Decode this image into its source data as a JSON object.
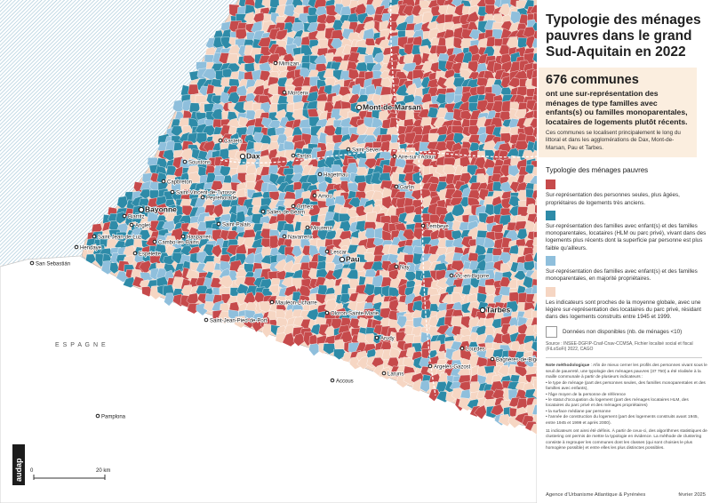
{
  "title": "Typologie des ménages pauvres dans le grand Sud-Aquitain en 2022",
  "highlight": {
    "count": "676 communes",
    "description": "ont une sur-représentation des ménages de type familles avec enfants(s) ou familles monoparentales, locataires de logements plutôt récents.",
    "note": "Ces communes se localisent principalement le long du littoral et dans les agglomérations de Dax, Mont-de-Marsan, Pau et Tarbes."
  },
  "legend": {
    "title": "Typologie des ménages pauvres",
    "items": [
      {
        "color": "#c64a4b",
        "text": "Sur-représentation des personnes seules, plus âgées, propriétaires de logements très anciens."
      },
      {
        "color": "#2e8ba8",
        "text": "Sur-représentation des familles avec enfant(s) et des familles monoparentales, locataires (HLM ou parc privé), vivant dans des logements plus récents dont la superficie par personne est plus faible qu'ailleurs."
      },
      {
        "color": "#8fbfdc",
        "text": "Sur-représentation des familles avec enfant(s) et des familles monoparentales, en majorité propriétaires."
      },
      {
        "color": "#f6d6c3",
        "text": "Les indicateurs sont proches de la moyenne globale, avec une légère sur-représentation des locataires du parc privé, résidant dans des logements construits entre 1945 et 1999."
      }
    ],
    "nodata": "Données non disponibles (nb. de ménages <10)"
  },
  "source": "Source : INSEE-DGFIP-Cnaf-Cnav-CCMSA, Fichier localisé social et fiscal (FiLoSoFi) 2022, CAGO",
  "method": {
    "heading": "Note méthodologique",
    "text": "Afin de mieux cerner les profils des personnes vivant sous le seuil de pauvreté, une typologie des ménages pauvres (37 750) a été réalisée à la maille communale à partir de plusieurs indicateurs :",
    "bullets": [
      "le type de ménage (part des personnes seules, des familles monoparentales et des familles avec enfants),",
      "l'âge moyen de la personne de référence",
      "le statut d'occupation du logement (part des ménages locataires HLM, des locataires du parc privé et des ménages propriétaires)",
      "la surface médiane par personne",
      "l'année de construction du logement (part des logements construits avant 1945, entre 1945 et 1999 et après 2000)."
    ],
    "text2": "11 indicateurs ont ainsi été définis. À partir de ceux-ci, des algorithmes statistiques de clustering ont permis de mettre la typologie en évidence. La méthode de clustering consiste à regrouper les communes dont les classes (qui sont choisies le plus homogène possible) et entre elles les plus distinctes possibles."
  },
  "footer": {
    "agency": "Agence d'Urbanisme Atlantique & Pyrénées",
    "date": "février 2025"
  },
  "map": {
    "country_label": "E S P A G N E",
    "scale_start": "0",
    "scale_end": "20 km",
    "logo": "audap",
    "cities": [
      {
        "name": "Mont-de-Marsan",
        "big": true
      },
      {
        "name": "Dax",
        "big": true
      },
      {
        "name": "Bayonne",
        "big": true
      },
      {
        "name": "Pau",
        "big": true
      },
      {
        "name": "Tarbes",
        "big": true
      },
      {
        "name": "Mimizan",
        "big": false
      },
      {
        "name": "Castets",
        "big": false
      },
      {
        "name": "Tartas",
        "big": false
      },
      {
        "name": "Soustons",
        "big": false
      },
      {
        "name": "Capbreton",
        "big": false
      },
      {
        "name": "Saint-Vincent-de-Tyrosse",
        "big": false
      },
      {
        "name": "Peyrehorade",
        "big": false
      },
      {
        "name": "Orthez",
        "big": false
      },
      {
        "name": "Salies-de-Béarn",
        "big": false
      },
      {
        "name": "Hagetmau",
        "big": false
      },
      {
        "name": "Aire-sur-l'Adour",
        "big": false
      },
      {
        "name": "Biarritz",
        "big": false
      },
      {
        "name": "Anglet",
        "big": false
      },
      {
        "name": "Saint-Jean-de-Luz",
        "big": false
      },
      {
        "name": "Hendaye",
        "big": false
      },
      {
        "name": "Cambo-les-Bains",
        "big": false
      },
      {
        "name": "Hasparren",
        "big": false
      },
      {
        "name": "Espelette",
        "big": false
      },
      {
        "name": "Saint-Palais",
        "big": false
      },
      {
        "name": "Mauléon-Licharre",
        "big": false
      },
      {
        "name": "Saint-Jean-Pied-de-Port",
        "big": false
      },
      {
        "name": "Oloron-Sainte-Marie",
        "big": false
      },
      {
        "name": "Mourenx",
        "big": false
      },
      {
        "name": "Navarrenx",
        "big": false
      },
      {
        "name": "Lescar",
        "big": false
      },
      {
        "name": "Nay",
        "big": false
      },
      {
        "name": "Lourdes",
        "big": false
      },
      {
        "name": "Bagnères-de-Bigorre",
        "big": false
      },
      {
        "name": "Vic-en-Bigorre",
        "big": false
      },
      {
        "name": "Garlin",
        "big": false
      },
      {
        "name": "Lembeye",
        "big": false
      },
      {
        "name": "Arudy",
        "big": false
      },
      {
        "name": "Laruns",
        "big": false
      },
      {
        "name": "Accous",
        "big": false
      },
      {
        "name": "Argelès-Gazost",
        "big": false
      },
      {
        "name": "Pamplona",
        "big": false
      },
      {
        "name": "San Sebastián",
        "big": false
      },
      {
        "name": "Morcenx",
        "big": false
      },
      {
        "name": "Saint-Sever",
        "big": false
      },
      {
        "name": "Amou",
        "big": false
      }
    ]
  }
}
